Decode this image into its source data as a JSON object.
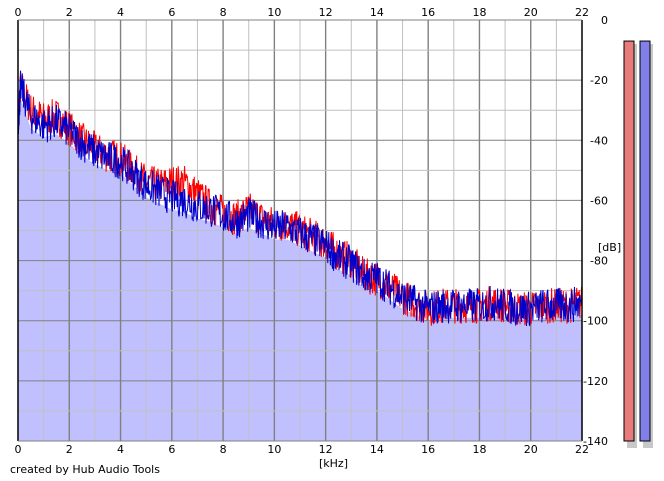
{
  "credit": "created by Hub Audio Tools",
  "chart_data": {
    "type": "area",
    "xlabel": "[kHz]",
    "ylabel": "[dB]",
    "xlim": [
      0,
      22
    ],
    "ylim": [
      -140,
      0
    ],
    "x_ticks": [
      0,
      2,
      4,
      6,
      8,
      10,
      12,
      14,
      16,
      18,
      20,
      22
    ],
    "y_ticks": [
      0,
      -20,
      -40,
      -60,
      -80,
      -100,
      -120,
      -140
    ],
    "grid": true,
    "colors": {
      "fill": "#c0c0ff",
      "left": "#ff0000",
      "right": "#0000cc",
      "grid_major": "#808080",
      "grid_minor": "#c0c0c0"
    },
    "series": [
      {
        "color": "#ff0000",
        "x": [
          0,
          0.1,
          0.5,
          1,
          1.5,
          2,
          2.5,
          3,
          3.5,
          4,
          4.5,
          5,
          5.5,
          6,
          6.5,
          7,
          7.5,
          8,
          8.5,
          9,
          9.5,
          10,
          10.5,
          11,
          11.5,
          12,
          12.5,
          13,
          13.5,
          14,
          14.5,
          15,
          15.5,
          16,
          16.5,
          17,
          17.5,
          18,
          18.5,
          19,
          19.5,
          20,
          20.5,
          21,
          21.5,
          22
        ],
        "values": [
          -33,
          -22,
          -30,
          -33,
          -32,
          -36,
          -40,
          -43,
          -45,
          -46,
          -50,
          -54,
          -55,
          -54,
          -54,
          -58,
          -62,
          -64,
          -66,
          -63,
          -66,
          -68,
          -68,
          -70,
          -72,
          -74,
          -78,
          -80,
          -85,
          -86,
          -89,
          -92,
          -94,
          -96,
          -95,
          -95,
          -95,
          -95,
          -94,
          -95,
          -96,
          -96,
          -95,
          -95,
          -95,
          -94
        ]
      },
      {
        "color": "#0000cc",
        "x": [
          0,
          0.1,
          0.5,
          1,
          1.5,
          2,
          2.5,
          3,
          3.5,
          4,
          4.5,
          5,
          5.5,
          6,
          6.5,
          7,
          7.5,
          8,
          8.5,
          9,
          9.5,
          10,
          10.5,
          11,
          11.5,
          12,
          12.5,
          13,
          13.5,
          14,
          14.5,
          15,
          15.5,
          16,
          16.5,
          17,
          17.5,
          18,
          18.5,
          19,
          19.5,
          20,
          20.5,
          21,
          21.5,
          22
        ],
        "values": [
          -35,
          -22,
          -32,
          -35,
          -34,
          -37,
          -41,
          -44,
          -46,
          -47,
          -51,
          -55,
          -57,
          -59,
          -60,
          -62,
          -63,
          -65,
          -67,
          -65,
          -67,
          -69,
          -69,
          -71,
          -73,
          -75,
          -79,
          -81,
          -85,
          -86,
          -89,
          -92,
          -94,
          -96,
          -95,
          -95,
          -95,
          -95,
          -94,
          -95,
          -96,
          -96,
          -95,
          -95,
          -95,
          -94
        ]
      }
    ],
    "meters": [
      {
        "color": "#e87c7c",
        "min": -140,
        "max": 0,
        "value": -7
      },
      {
        "color": "#8080e8",
        "min": -140,
        "max": 0,
        "value": -7
      }
    ]
  }
}
